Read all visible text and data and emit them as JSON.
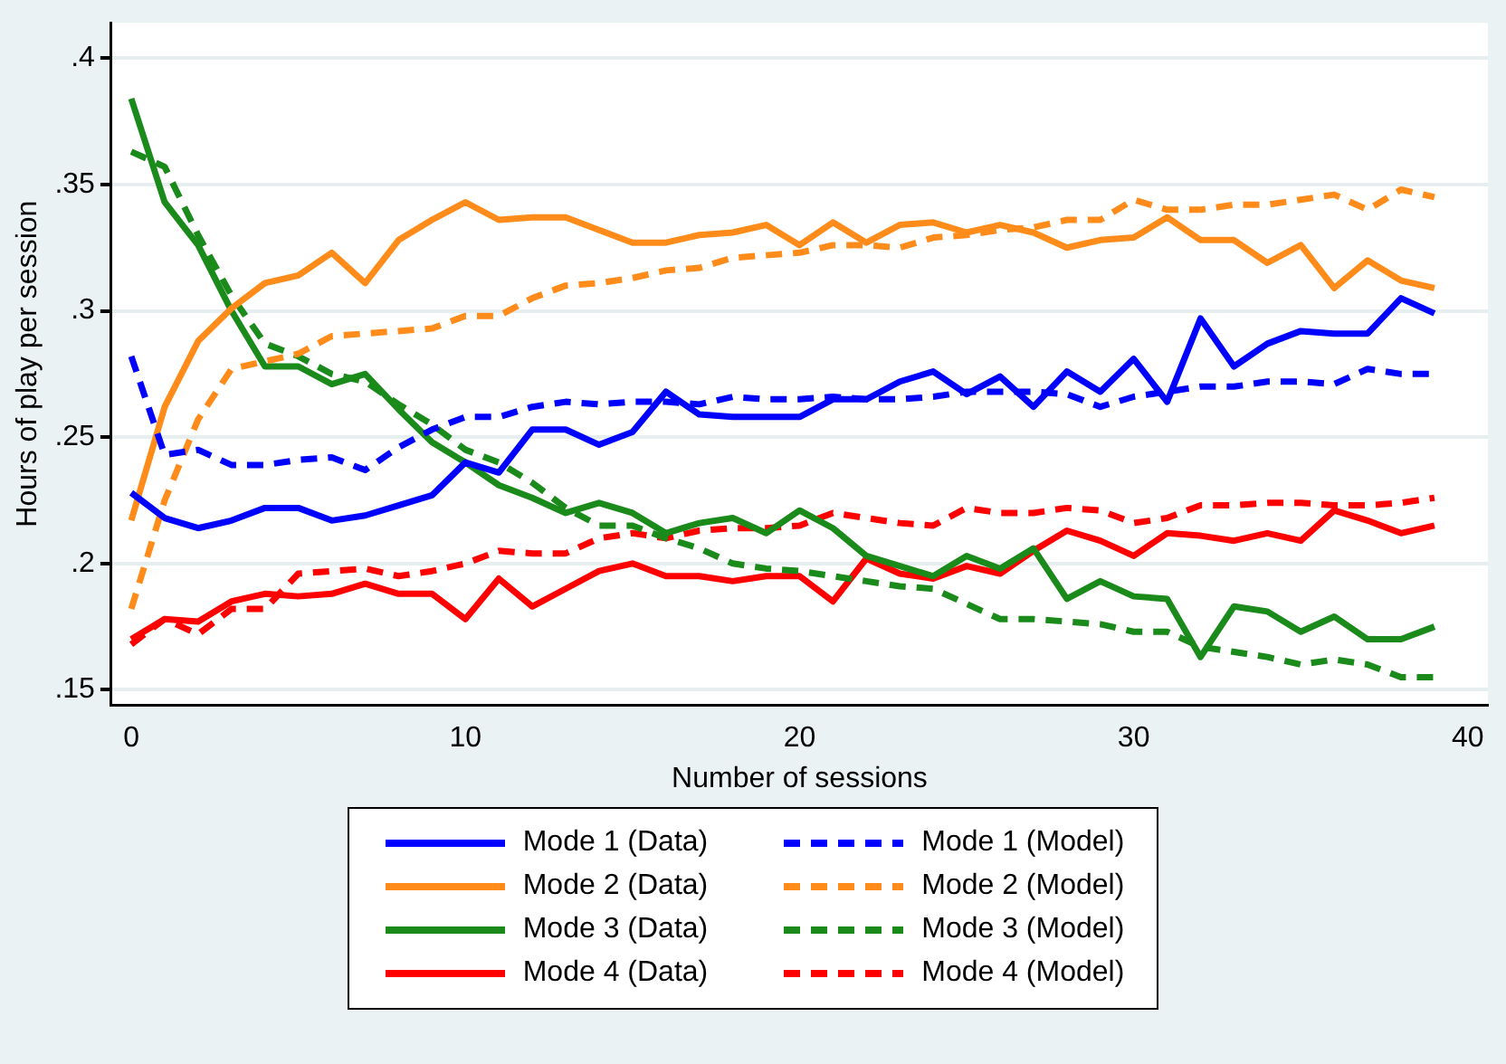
{
  "chart_data": {
    "type": "line",
    "xlabel": "Number of sessions",
    "ylabel": "Hours of play per session",
    "x": [
      0,
      1,
      2,
      3,
      4,
      5,
      6,
      7,
      8,
      9,
      10,
      11,
      12,
      13,
      14,
      15,
      16,
      17,
      18,
      19,
      20,
      21,
      22,
      23,
      24,
      25,
      26,
      27,
      28,
      29,
      30,
      31,
      32,
      33,
      34,
      35,
      36,
      37,
      38,
      39
    ],
    "xlim": [
      -0.6,
      40.6
    ],
    "xticks": [
      0,
      10,
      20,
      30,
      40
    ],
    "ylim": [
      0.144,
      0.414
    ],
    "yticks": [
      {
        "value": 0.15,
        "label": ".15"
      },
      {
        "value": 0.2,
        "label": ".2"
      },
      {
        "value": 0.25,
        "label": ".25"
      },
      {
        "value": 0.3,
        "label": ".3"
      },
      {
        "value": 0.35,
        "label": ".35"
      },
      {
        "value": 0.4,
        "label": ".4"
      }
    ],
    "grid": "y",
    "legend": "bottom",
    "marker": "none",
    "series": [
      {
        "name": "Mode 1 (Data)",
        "color": "#0000ff",
        "line_style": "solid",
        "values": [
          0.228,
          0.218,
          0.214,
          0.217,
          0.222,
          0.222,
          0.217,
          0.219,
          0.223,
          0.227,
          0.24,
          0.236,
          0.253,
          0.253,
          0.247,
          0.252,
          0.268,
          0.259,
          0.258,
          0.258,
          0.258,
          0.265,
          0.265,
          0.272,
          0.276,
          0.267,
          0.274,
          0.262,
          0.276,
          0.268,
          0.281,
          0.264,
          0.297,
          0.278,
          0.287,
          0.292,
          0.291,
          0.291,
          0.305,
          0.299
        ]
      },
      {
        "name": "Mode 1 (Model)",
        "color": "#0000ff",
        "line_style": "dashed",
        "values": [
          0.282,
          0.243,
          0.245,
          0.239,
          0.239,
          0.241,
          0.242,
          0.237,
          0.246,
          0.253,
          0.258,
          0.258,
          0.262,
          0.264,
          0.263,
          0.264,
          0.264,
          0.263,
          0.266,
          0.265,
          0.265,
          0.266,
          0.265,
          0.265,
          0.266,
          0.268,
          0.268,
          0.268,
          0.267,
          0.262,
          0.266,
          0.268,
          0.27,
          0.27,
          0.272,
          0.272,
          0.271,
          0.277,
          0.275,
          0.275
        ]
      },
      {
        "name": "Mode 2 (Data)",
        "color": "#ff8c1a",
        "line_style": "solid",
        "values": [
          0.217,
          0.262,
          0.288,
          0.301,
          0.311,
          0.314,
          0.323,
          0.311,
          0.328,
          0.336,
          0.343,
          0.336,
          0.337,
          0.337,
          0.332,
          0.327,
          0.327,
          0.33,
          0.331,
          0.334,
          0.326,
          0.335,
          0.327,
          0.334,
          0.335,
          0.331,
          0.334,
          0.331,
          0.325,
          0.328,
          0.329,
          0.337,
          0.328,
          0.328,
          0.319,
          0.326,
          0.309,
          0.32,
          0.312,
          0.309
        ]
      },
      {
        "name": "Mode 2 (Model)",
        "color": "#ff8c1a",
        "line_style": "dashed",
        "values": [
          0.182,
          0.225,
          0.257,
          0.277,
          0.28,
          0.283,
          0.29,
          0.291,
          0.292,
          0.293,
          0.298,
          0.298,
          0.305,
          0.31,
          0.311,
          0.313,
          0.316,
          0.317,
          0.321,
          0.322,
          0.323,
          0.326,
          0.326,
          0.325,
          0.329,
          0.33,
          0.332,
          0.333,
          0.336,
          0.336,
          0.344,
          0.34,
          0.34,
          0.342,
          0.342,
          0.344,
          0.346,
          0.34,
          0.348,
          0.345
        ]
      },
      {
        "name": "Mode 3 (Data)",
        "color": "#1a8a1a",
        "line_style": "solid",
        "values": [
          0.384,
          0.343,
          0.326,
          0.3,
          0.278,
          0.278,
          0.271,
          0.275,
          0.261,
          0.248,
          0.24,
          0.231,
          0.226,
          0.22,
          0.224,
          0.22,
          0.212,
          0.216,
          0.218,
          0.212,
          0.221,
          0.214,
          0.203,
          0.199,
          0.195,
          0.203,
          0.198,
          0.206,
          0.186,
          0.193,
          0.187,
          0.186,
          0.163,
          0.183,
          0.181,
          0.173,
          0.179,
          0.17,
          0.17,
          0.175
        ]
      },
      {
        "name": "Mode 3 (Model)",
        "color": "#1a8a1a",
        "line_style": "dashed",
        "values": [
          0.363,
          0.357,
          0.33,
          0.306,
          0.287,
          0.282,
          0.275,
          0.272,
          0.263,
          0.255,
          0.245,
          0.24,
          0.232,
          0.222,
          0.215,
          0.215,
          0.21,
          0.206,
          0.2,
          0.198,
          0.197,
          0.195,
          0.193,
          0.191,
          0.19,
          0.184,
          0.178,
          0.178,
          0.177,
          0.176,
          0.173,
          0.173,
          0.167,
          0.165,
          0.163,
          0.16,
          0.162,
          0.16,
          0.155,
          0.155
        ]
      },
      {
        "name": "Mode 4 (Data)",
        "color": "#ff0000",
        "line_style": "solid",
        "values": [
          0.17,
          0.178,
          0.177,
          0.185,
          0.188,
          0.187,
          0.188,
          0.192,
          0.188,
          0.188,
          0.178,
          0.194,
          0.183,
          0.19,
          0.197,
          0.2,
          0.195,
          0.195,
          0.193,
          0.195,
          0.195,
          0.185,
          0.202,
          0.196,
          0.194,
          0.199,
          0.196,
          0.205,
          0.213,
          0.209,
          0.203,
          0.212,
          0.211,
          0.209,
          0.212,
          0.209,
          0.221,
          0.217,
          0.212,
          0.215
        ]
      },
      {
        "name": "Mode 4 (Model)",
        "color": "#ff0000",
        "line_style": "dashed",
        "values": [
          0.168,
          0.178,
          0.172,
          0.182,
          0.182,
          0.196,
          0.197,
          0.198,
          0.195,
          0.197,
          0.2,
          0.205,
          0.204,
          0.204,
          0.21,
          0.212,
          0.21,
          0.213,
          0.214,
          0.214,
          0.215,
          0.22,
          0.218,
          0.216,
          0.215,
          0.222,
          0.22,
          0.22,
          0.222,
          0.221,
          0.216,
          0.218,
          0.223,
          0.223,
          0.224,
          0.224,
          0.223,
          0.223,
          0.224,
          0.226
        ]
      }
    ]
  }
}
